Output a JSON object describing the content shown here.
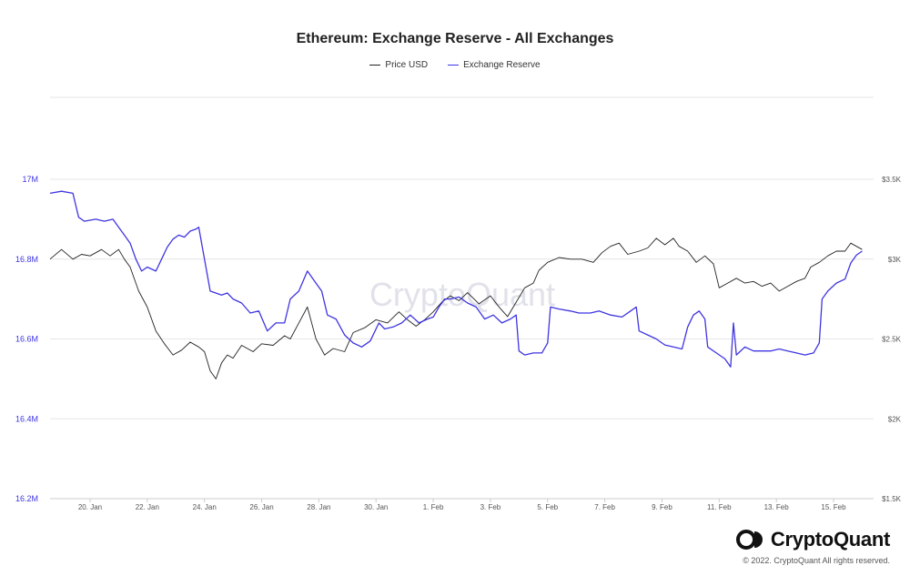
{
  "chart_data": {
    "type": "line",
    "title": "Ethereum: Exchange Reserve - All Exchanges",
    "watermark": "CryptoQuant",
    "x_ticks": [
      "20. Jan",
      "22. Jan",
      "24. Jan",
      "26. Jan",
      "28. Jan",
      "30. Jan",
      "1. Feb",
      "3. Feb",
      "5. Feb",
      "7. Feb",
      "9. Feb",
      "11. Feb",
      "13. Feb",
      "15. Feb"
    ],
    "x_range": [
      18.6,
      47.4
    ],
    "left_axis": {
      "ticks": [
        "17M",
        "16.8M",
        "16.6M",
        "16.4M",
        "16.2M"
      ],
      "tick_values": [
        17.0,
        16.8,
        16.6,
        16.4,
        16.2
      ],
      "range": [
        16.2,
        17.0
      ],
      "unit": "M",
      "color": "#3f35e0"
    },
    "right_axis": {
      "ticks": [
        "$3.5K",
        "$3K",
        "$2.5K",
        "$2K",
        "$1.5K"
      ],
      "tick_values": [
        3.5,
        3.0,
        2.5,
        2.0,
        1.5
      ],
      "range": [
        1.5,
        3.5
      ],
      "unit": "K USD",
      "color": "#555555"
    },
    "grid": true,
    "legend_position": "top-center",
    "series": [
      {
        "name": "Price USD",
        "axis": "right",
        "color": "#222222",
        "points": [
          [
            18.6,
            3.0
          ],
          [
            19.0,
            3.06
          ],
          [
            19.4,
            3.0
          ],
          [
            19.7,
            3.03
          ],
          [
            20.0,
            3.02
          ],
          [
            20.4,
            3.06
          ],
          [
            20.7,
            3.02
          ],
          [
            21.0,
            3.06
          ],
          [
            21.2,
            3.0
          ],
          [
            21.4,
            2.95
          ],
          [
            21.7,
            2.8
          ],
          [
            22.0,
            2.7
          ],
          [
            22.3,
            2.55
          ],
          [
            22.6,
            2.47
          ],
          [
            22.9,
            2.4
          ],
          [
            23.2,
            2.43
          ],
          [
            23.5,
            2.48
          ],
          [
            23.8,
            2.45
          ],
          [
            24.0,
            2.42
          ],
          [
            24.2,
            2.3
          ],
          [
            24.4,
            2.25
          ],
          [
            24.6,
            2.35
          ],
          [
            24.8,
            2.4
          ],
          [
            25.0,
            2.38
          ],
          [
            25.3,
            2.46
          ],
          [
            25.7,
            2.42
          ],
          [
            26.0,
            2.47
          ],
          [
            26.4,
            2.46
          ],
          [
            26.8,
            2.52
          ],
          [
            27.0,
            2.5
          ],
          [
            27.3,
            2.6
          ],
          [
            27.6,
            2.7
          ],
          [
            27.9,
            2.5
          ],
          [
            28.2,
            2.4
          ],
          [
            28.5,
            2.44
          ],
          [
            28.9,
            2.42
          ],
          [
            29.2,
            2.54
          ],
          [
            29.6,
            2.57
          ],
          [
            30.0,
            2.62
          ],
          [
            30.4,
            2.6
          ],
          [
            30.8,
            2.67
          ],
          [
            31.1,
            2.62
          ],
          [
            31.4,
            2.58
          ],
          [
            31.7,
            2.62
          ],
          [
            32.0,
            2.67
          ],
          [
            32.3,
            2.73
          ],
          [
            32.6,
            2.77
          ],
          [
            32.9,
            2.74
          ],
          [
            33.2,
            2.79
          ],
          [
            33.6,
            2.72
          ],
          [
            34.0,
            2.77
          ],
          [
            34.3,
            2.7
          ],
          [
            34.6,
            2.64
          ],
          [
            34.9,
            2.73
          ],
          [
            35.2,
            2.82
          ],
          [
            35.5,
            2.85
          ],
          [
            35.7,
            2.93
          ],
          [
            36.0,
            2.98
          ],
          [
            36.4,
            3.01
          ],
          [
            36.8,
            3.0
          ],
          [
            37.2,
            3.0
          ],
          [
            37.6,
            2.98
          ],
          [
            37.9,
            3.04
          ],
          [
            38.2,
            3.08
          ],
          [
            38.5,
            3.1
          ],
          [
            38.8,
            3.03
          ],
          [
            39.2,
            3.05
          ],
          [
            39.5,
            3.07
          ],
          [
            39.8,
            3.13
          ],
          [
            40.1,
            3.09
          ],
          [
            40.4,
            3.13
          ],
          [
            40.6,
            3.08
          ],
          [
            40.9,
            3.05
          ],
          [
            41.2,
            2.98
          ],
          [
            41.5,
            3.02
          ],
          [
            41.8,
            2.97
          ],
          [
            42.0,
            2.82
          ],
          [
            42.3,
            2.85
          ],
          [
            42.6,
            2.88
          ],
          [
            42.9,
            2.85
          ],
          [
            43.2,
            2.86
          ],
          [
            43.5,
            2.83
          ],
          [
            43.8,
            2.85
          ],
          [
            44.1,
            2.8
          ],
          [
            44.4,
            2.83
          ],
          [
            44.7,
            2.86
          ],
          [
            45.0,
            2.88
          ],
          [
            45.2,
            2.95
          ],
          [
            45.5,
            2.98
          ],
          [
            45.8,
            3.02
          ],
          [
            46.1,
            3.05
          ],
          [
            46.4,
            3.05
          ],
          [
            46.6,
            3.1
          ],
          [
            46.8,
            3.08
          ],
          [
            47.0,
            3.06
          ]
        ]
      },
      {
        "name": "Exchange Reserve",
        "axis": "left",
        "color": "#3f35e0",
        "points": [
          [
            18.6,
            16.965
          ],
          [
            19.0,
            16.97
          ],
          [
            19.4,
            16.965
          ],
          [
            19.6,
            16.905
          ],
          [
            19.8,
            16.895
          ],
          [
            20.2,
            16.9
          ],
          [
            20.5,
            16.895
          ],
          [
            20.8,
            16.9
          ],
          [
            21.0,
            16.88
          ],
          [
            21.2,
            16.86
          ],
          [
            21.4,
            16.84
          ],
          [
            21.6,
            16.8
          ],
          [
            21.8,
            16.77
          ],
          [
            22.0,
            16.78
          ],
          [
            22.3,
            16.77
          ],
          [
            22.5,
            16.8
          ],
          [
            22.7,
            16.83
          ],
          [
            22.9,
            16.85
          ],
          [
            23.1,
            16.86
          ],
          [
            23.3,
            16.855
          ],
          [
            23.5,
            16.87
          ],
          [
            23.7,
            16.875
          ],
          [
            23.8,
            16.88
          ],
          [
            24.0,
            16.8
          ],
          [
            24.2,
            16.72
          ],
          [
            24.6,
            16.71
          ],
          [
            24.8,
            16.715
          ],
          [
            25.0,
            16.7
          ],
          [
            25.3,
            16.69
          ],
          [
            25.6,
            16.665
          ],
          [
            25.9,
            16.67
          ],
          [
            26.2,
            16.62
          ],
          [
            26.5,
            16.64
          ],
          [
            26.8,
            16.64
          ],
          [
            27.0,
            16.7
          ],
          [
            27.3,
            16.72
          ],
          [
            27.6,
            16.77
          ],
          [
            27.9,
            16.74
          ],
          [
            28.1,
            16.72
          ],
          [
            28.3,
            16.66
          ],
          [
            28.6,
            16.65
          ],
          [
            28.9,
            16.61
          ],
          [
            29.2,
            16.59
          ],
          [
            29.5,
            16.58
          ],
          [
            29.8,
            16.595
          ],
          [
            30.1,
            16.64
          ],
          [
            30.3,
            16.625
          ],
          [
            30.6,
            16.63
          ],
          [
            30.9,
            16.64
          ],
          [
            31.2,
            16.66
          ],
          [
            31.5,
            16.64
          ],
          [
            31.8,
            16.65
          ],
          [
            32.0,
            16.655
          ],
          [
            32.2,
            16.68
          ],
          [
            32.4,
            16.7
          ],
          [
            32.6,
            16.7
          ],
          [
            32.9,
            16.705
          ],
          [
            33.2,
            16.69
          ],
          [
            33.5,
            16.68
          ],
          [
            33.8,
            16.65
          ],
          [
            34.1,
            16.66
          ],
          [
            34.4,
            16.64
          ],
          [
            34.7,
            16.65
          ],
          [
            34.9,
            16.66
          ],
          [
            35.0,
            16.57
          ],
          [
            35.2,
            16.56
          ],
          [
            35.5,
            16.565
          ],
          [
            35.8,
            16.565
          ],
          [
            36.0,
            16.59
          ],
          [
            36.1,
            16.68
          ],
          [
            36.4,
            16.675
          ],
          [
            36.8,
            16.67
          ],
          [
            37.1,
            16.665
          ],
          [
            37.5,
            16.665
          ],
          [
            37.8,
            16.67
          ],
          [
            38.2,
            16.66
          ],
          [
            38.6,
            16.655
          ],
          [
            38.9,
            16.67
          ],
          [
            39.1,
            16.68
          ],
          [
            39.2,
            16.62
          ],
          [
            39.5,
            16.61
          ],
          [
            39.8,
            16.6
          ],
          [
            40.1,
            16.585
          ],
          [
            40.4,
            16.58
          ],
          [
            40.7,
            16.575
          ],
          [
            40.9,
            16.63
          ],
          [
            41.1,
            16.66
          ],
          [
            41.3,
            16.67
          ],
          [
            41.5,
            16.65
          ],
          [
            41.6,
            16.58
          ],
          [
            41.9,
            16.565
          ],
          [
            42.2,
            16.55
          ],
          [
            42.4,
            16.53
          ],
          [
            42.5,
            16.64
          ],
          [
            42.6,
            16.56
          ],
          [
            42.9,
            16.58
          ],
          [
            43.2,
            16.57
          ],
          [
            43.5,
            16.57
          ],
          [
            43.8,
            16.57
          ],
          [
            44.1,
            16.575
          ],
          [
            44.4,
            16.57
          ],
          [
            44.7,
            16.565
          ],
          [
            45.0,
            16.56
          ],
          [
            45.3,
            16.565
          ],
          [
            45.5,
            16.59
          ],
          [
            45.6,
            16.7
          ],
          [
            45.8,
            16.72
          ],
          [
            46.1,
            16.74
          ],
          [
            46.4,
            16.75
          ],
          [
            46.6,
            16.79
          ],
          [
            46.8,
            16.81
          ],
          [
            47.0,
            16.82
          ]
        ]
      }
    ]
  },
  "legend": {
    "items": [
      {
        "label": "Price USD",
        "color": "#222222"
      },
      {
        "label": "Exchange Reserve",
        "color": "#3f35e0"
      }
    ]
  },
  "branding": {
    "logo_text": "CryptoQuant",
    "copyright": "© 2022. CryptoQuant All rights reserved.",
    "logo_icon": "cryptoquant-logo-icon"
  }
}
